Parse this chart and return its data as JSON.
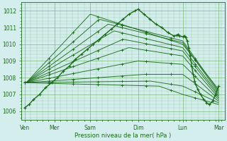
{
  "bg_color": "#d4eeee",
  "line_color": "#1a6b1a",
  "grid_color": "#7ab87a",
  "ylim": [
    1005.5,
    1012.5
  ],
  "yticks": [
    1006,
    1007,
    1008,
    1009,
    1010,
    1011,
    1012
  ],
  "xtick_labels": [
    "Ven",
    "Mer",
    "Sam",
    "Dim",
    "Lun",
    "Mar"
  ],
  "xtick_pos": [
    0.0,
    1.0,
    2.2,
    3.8,
    5.3,
    6.5
  ],
  "xlabel": "Pression niveau de la mer( hPa )",
  "xlabel_color": "#1a6b1a"
}
